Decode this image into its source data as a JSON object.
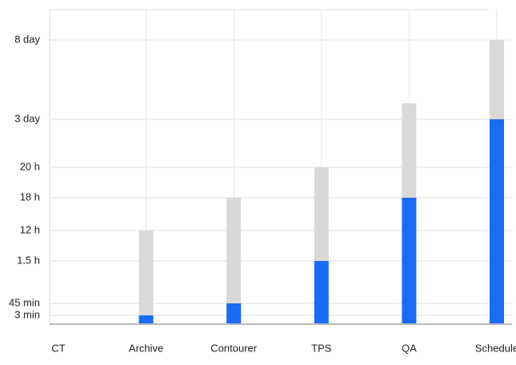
{
  "chart_data": {
    "type": "bar",
    "categories": [
      "CT",
      "Archive",
      "Contourer",
      "TPS",
      "QA",
      "Schedule"
    ],
    "series": [
      {
        "color": "#d9d9d9",
        "values": [
          0,
          720,
          1080,
          1200,
          5760,
          11520
        ]
      },
      {
        "color": "#1a6cf2",
        "values": [
          0,
          3,
          45,
          90,
          1080,
          4320
        ]
      }
    ],
    "ylim": [
      0,
      14400
    ],
    "yticks": [
      {
        "value": 3,
        "label": "3 min"
      },
      {
        "value": 45,
        "label": "45 min"
      },
      {
        "value": 90,
        "label": "1.5 h"
      },
      {
        "value": 720,
        "label": "12 h"
      },
      {
        "value": 1080,
        "label": "18 h"
      },
      {
        "value": 1200,
        "label": "20 h"
      },
      {
        "value": 4320,
        "label": "3 day"
      },
      {
        "value": 11520,
        "label": "8 day"
      }
    ],
    "grid": true
  }
}
